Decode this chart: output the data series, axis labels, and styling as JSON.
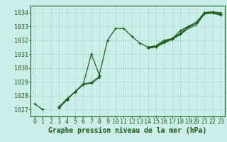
{
  "bg_color": "#cceee8",
  "grid_color": "#aaddcc",
  "line_color": "#1a5e1a",
  "xlabel": "Graphe pression niveau de la mer (hPa)",
  "xlabel_fontsize": 7,
  "tick_fontsize": 6,
  "ylim": [
    1026.5,
    1034.5
  ],
  "xlim": [
    -0.5,
    23.5
  ],
  "yticks": [
    1027,
    1028,
    1029,
    1030,
    1031,
    1032,
    1033,
    1034
  ],
  "xticks": [
    0,
    1,
    2,
    3,
    4,
    5,
    6,
    7,
    8,
    9,
    10,
    11,
    12,
    13,
    14,
    15,
    16,
    17,
    18,
    19,
    20,
    21,
    22,
    23
  ],
  "series1": [
    1027.4,
    1027.0,
    null,
    1027.1,
    1027.7,
    1028.3,
    1028.8,
    1031.0,
    1029.5,
    1032.0,
    1032.85,
    1032.85,
    1032.3,
    1031.8,
    1031.5,
    1031.6,
    1032.0,
    1032.1,
    1032.7,
    1033.0,
    1033.3,
    1034.0,
    1034.05,
    1034.0
  ],
  "series2": [
    null,
    null,
    null,
    1027.2,
    1027.75,
    1028.3,
    1028.85,
    1028.95,
    1029.4,
    null,
    null,
    null,
    null,
    null,
    1031.5,
    1031.6,
    1031.9,
    1032.15,
    1032.5,
    1033.0,
    1033.3,
    1034.0,
    1034.05,
    1033.9
  ],
  "series3": [
    null,
    null,
    null,
    1027.15,
    1027.8,
    1028.25,
    1028.8,
    1028.9,
    1029.3,
    null,
    null,
    null,
    null,
    null,
    1031.45,
    1031.55,
    1031.85,
    1032.1,
    1032.45,
    1032.95,
    1033.2,
    1033.95,
    1034.0,
    1033.85
  ],
  "series4": [
    null,
    null,
    null,
    null,
    null,
    null,
    null,
    null,
    null,
    null,
    null,
    null,
    null,
    null,
    1031.4,
    1031.5,
    1031.8,
    1032.05,
    1032.4,
    1032.85,
    1033.1,
    1033.9,
    1033.95,
    1033.8
  ]
}
